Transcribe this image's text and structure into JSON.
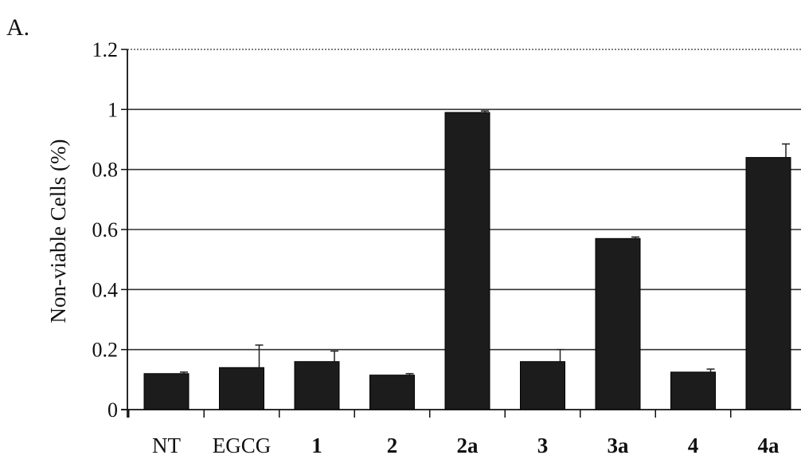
{
  "panel_label": "A.",
  "chart_data": {
    "type": "bar",
    "ylabel": "Non-viable Cells  (%)",
    "xlabel": "",
    "ylim": [
      0,
      1.2
    ],
    "yticks": [
      "0",
      "0.2",
      "0.4",
      "0.6",
      "0.8",
      "1",
      "1.2"
    ],
    "ytick_values": [
      0,
      0.2,
      0.4,
      0.6,
      0.8,
      1.0,
      1.2
    ],
    "grid": true,
    "categories": [
      "NT",
      "EGCG",
      "1",
      "2",
      "2a",
      "3",
      "3a",
      "4",
      "4a"
    ],
    "bold_categories": [
      "1",
      "2",
      "2a",
      "3",
      "3a",
      "4",
      "4a"
    ],
    "values": [
      0.12,
      0.14,
      0.16,
      0.115,
      0.99,
      0.16,
      0.57,
      0.125,
      0.84
    ],
    "errors": [
      0.005,
      0.075,
      0.035,
      0.005,
      0.005,
      0.04,
      0.005,
      0.01,
      0.045
    ],
    "bar_color": "#1c1c1c",
    "grid_color": "#333333"
  }
}
